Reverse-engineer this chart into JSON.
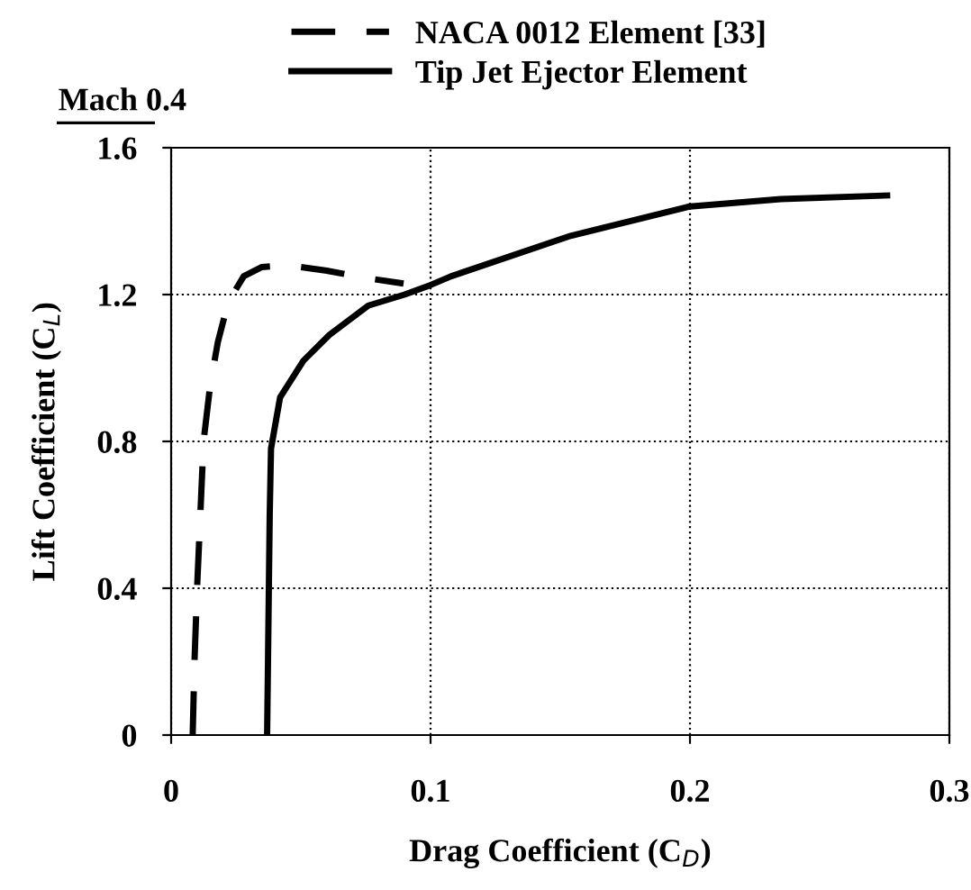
{
  "chart_data": {
    "type": "line",
    "xlabel": "Drag Coefficient (C$_{D}$)",
    "ylabel": "Lift Coefficient (C$_{L}$)",
    "annotations": [
      "Mach 0.4"
    ],
    "xlim": [
      0,
      0.3
    ],
    "xticks": [
      0,
      0.1,
      0.2,
      0.3
    ],
    "ylim": [
      0,
      1.6
    ],
    "yticks": [
      0,
      0.4,
      0.8,
      1.2,
      1.6
    ],
    "grid": true,
    "legend": "top left",
    "marker": "none",
    "series": [
      {
        "name": "NACA 0012 Element [33]",
        "color": "#000000",
        "line_style": "dashed",
        "x": [
          0.0083,
          0.009,
          0.01,
          0.0125,
          0.015,
          0.018,
          0.022,
          0.028,
          0.035,
          0.045,
          0.06,
          0.075,
          0.0896
        ],
        "values": [
          0,
          0.2,
          0.4,
          0.8,
          0.95,
          1.07,
          1.18,
          1.25,
          1.275,
          1.28,
          1.265,
          1.245,
          1.23
        ]
      },
      {
        "name": "Tip Jet Ejector Element",
        "color": "#000000",
        "line_style": "solid",
        "x": [
          0.037,
          0.0375,
          0.038,
          0.0385,
          0.042,
          0.051,
          0.061,
          0.076,
          0.09,
          0.1,
          0.108,
          0.154,
          0.2,
          0.235,
          0.276
        ],
        "values": [
          0,
          0.3,
          0.6,
          0.78,
          0.92,
          1.02,
          1.09,
          1.17,
          1.2,
          1.226,
          1.25,
          1.36,
          1.44,
          1.46,
          1.47
        ]
      }
    ]
  }
}
